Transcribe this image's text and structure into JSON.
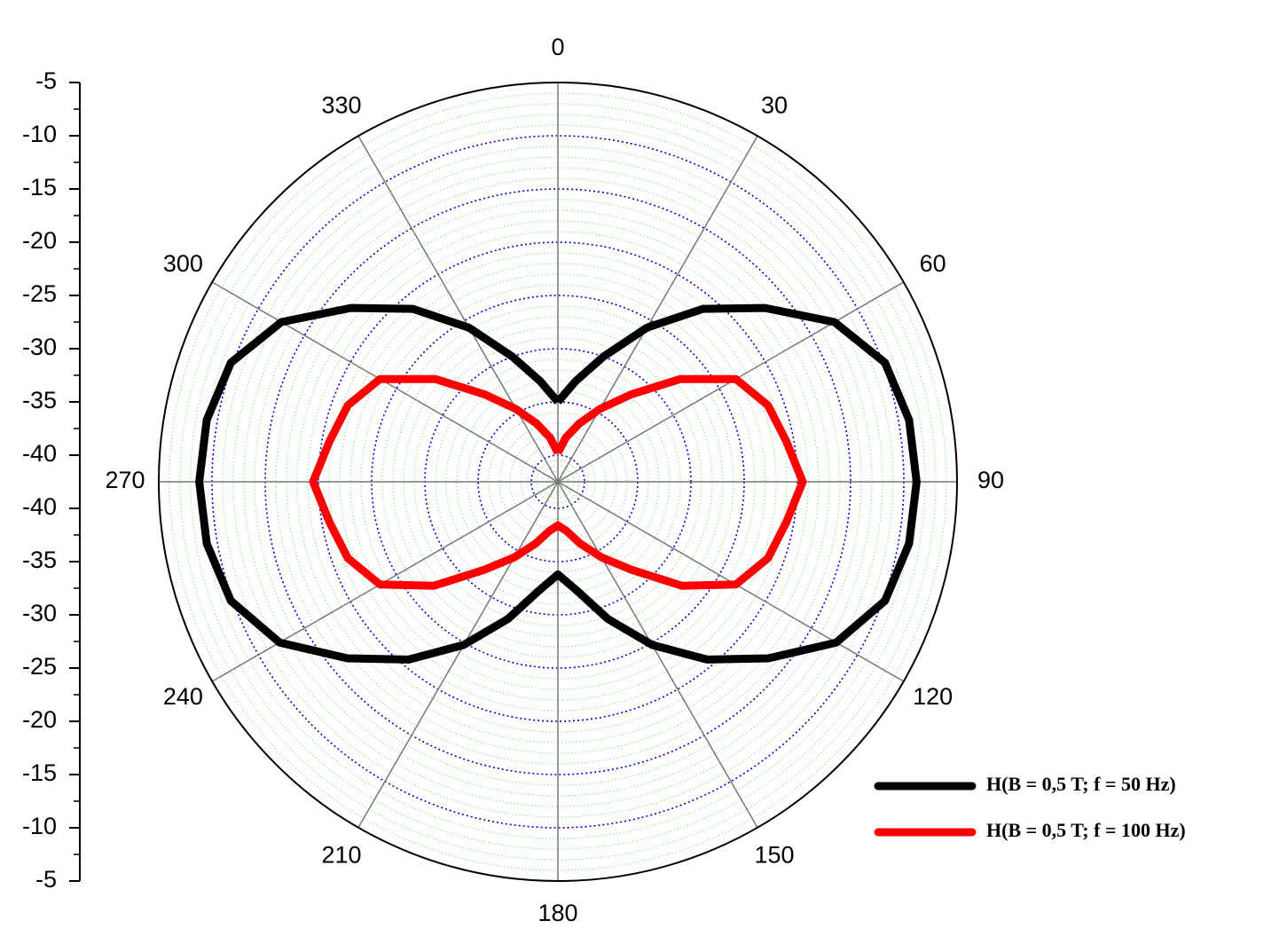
{
  "chart_data": {
    "type": "polar",
    "theta": [
      0,
      10,
      20,
      30,
      40,
      50,
      60,
      70,
      80,
      90,
      100,
      110,
      120,
      130,
      140,
      150,
      160,
      170,
      180,
      190,
      200,
      210,
      220,
      230,
      240,
      250,
      260,
      270,
      280,
      290,
      300,
      310,
      320,
      330,
      340,
      350,
      360
    ],
    "series": [
      {
        "name": "H(B = 0,5 T; f = 50 Hz)",
        "color": "#000000",
        "values": [
          -35.0,
          -32.9,
          -30.0,
          -25.8,
          -21.3,
          -17.1,
          -12.5,
          -9.8,
          -9.0,
          -8.8,
          -9.0,
          -9.8,
          -12.3,
          -16.7,
          -20.7,
          -24.8,
          -28.8,
          -32.1,
          -33.8,
          -32.1,
          -28.8,
          -24.8,
          -20.7,
          -16.7,
          -12.3,
          -9.8,
          -9.0,
          -8.8,
          -9.0,
          -9.8,
          -12.5,
          -17.1,
          -21.3,
          -25.8,
          -30.0,
          -32.9,
          -35.0
        ]
      },
      {
        "name": "H(B = 0,5 T; f = 100 Hz)",
        "color": "#ff0000",
        "values": [
          -39.8,
          -38.3,
          -36.7,
          -34.6,
          -31.8,
          -27.5,
          -23.2,
          -21.5,
          -20.7,
          -19.5,
          -20.7,
          -21.5,
          -23.2,
          -27.3,
          -31.7,
          -34.3,
          -36.3,
          -37.8,
          -38.4,
          -37.8,
          -36.3,
          -34.3,
          -31.7,
          -27.3,
          -23.2,
          -21.5,
          -20.7,
          -19.5,
          -20.7,
          -21.5,
          -23.2,
          -27.5,
          -31.8,
          -34.6,
          -36.7,
          -38.3,
          -39.8
        ]
      }
    ],
    "rlim": [
      -42.5,
      -5
    ],
    "rticks": [
      -5,
      -10,
      -15,
      -20,
      -25,
      -30,
      -35,
      -40
    ],
    "thetaticks": [
      0,
      30,
      60,
      90,
      120,
      150,
      180,
      210,
      240,
      270,
      300,
      330
    ],
    "grid": true,
    "minor_grid": true,
    "legend": "lower right"
  }
}
